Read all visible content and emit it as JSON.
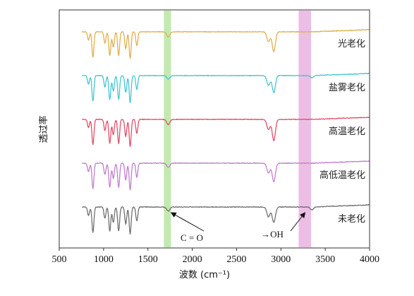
{
  "chart_data": {
    "type": "line",
    "title": "",
    "xlabel": "波数 (cm⁻¹)",
    "ylabel": "透过率",
    "xlim": [
      500,
      4000
    ],
    "x_ticks": [
      500,
      1000,
      1500,
      2000,
      2500,
      3000,
      3500,
      4000
    ],
    "y_ticks_shown": false,
    "grid": false,
    "legend_placement": "labels at right end of each trace",
    "stacking": "vertically offset, top to bottom",
    "series": [
      {
        "name": "光老化",
        "color": "#e0b050",
        "peaks": [
          [
            830,
            0.3
          ],
          [
            880,
            0.9
          ],
          [
            1015,
            0.4
          ],
          [
            1070,
            0.85
          ],
          [
            1110,
            0.55
          ],
          [
            1170,
            0.85
          ],
          [
            1250,
            0.6
          ],
          [
            1300,
            0.95
          ],
          [
            1375,
            0.5
          ],
          [
            1730,
            0.18
          ],
          [
            2860,
            0.35
          ],
          [
            2920,
            0.7
          ]
        ]
      },
      {
        "name": "盐雾老化",
        "color": "#45c6d4",
        "peaks": [
          [
            830,
            0.3
          ],
          [
            880,
            0.9
          ],
          [
            1015,
            0.4
          ],
          [
            1070,
            0.85
          ],
          [
            1110,
            0.55
          ],
          [
            1170,
            0.85
          ],
          [
            1250,
            0.6
          ],
          [
            1300,
            0.95
          ],
          [
            1375,
            0.5
          ],
          [
            1730,
            0.12
          ],
          [
            2860,
            0.35
          ],
          [
            2920,
            0.6
          ],
          [
            3350,
            0.08
          ]
        ]
      },
      {
        "name": "高温老化",
        "color": "#e0506a",
        "peaks": [
          [
            830,
            0.3
          ],
          [
            880,
            0.9
          ],
          [
            1015,
            0.4
          ],
          [
            1070,
            0.85
          ],
          [
            1110,
            0.55
          ],
          [
            1170,
            0.85
          ],
          [
            1250,
            0.6
          ],
          [
            1300,
            0.95
          ],
          [
            1375,
            0.5
          ],
          [
            1730,
            0.18
          ],
          [
            2860,
            0.35
          ],
          [
            2920,
            0.75
          ]
        ]
      },
      {
        "name": "高低温老化",
        "color": "#c080cc",
        "peaks": [
          [
            830,
            0.3
          ],
          [
            880,
            0.9
          ],
          [
            1015,
            0.4
          ],
          [
            1070,
            0.85
          ],
          [
            1110,
            0.55
          ],
          [
            1170,
            0.85
          ],
          [
            1250,
            0.6
          ],
          [
            1300,
            0.95
          ],
          [
            1375,
            0.5
          ],
          [
            1730,
            0.15
          ],
          [
            2860,
            0.35
          ],
          [
            2920,
            0.65
          ]
        ]
      },
      {
        "name": "未老化",
        "color": "#707070",
        "peaks": [
          [
            830,
            0.3
          ],
          [
            880,
            0.9
          ],
          [
            1015,
            0.4
          ],
          [
            1070,
            0.85
          ],
          [
            1110,
            0.55
          ],
          [
            1170,
            0.85
          ],
          [
            1250,
            0.6
          ],
          [
            1300,
            0.95
          ],
          [
            1375,
            0.5
          ],
          [
            1730,
            0.15
          ],
          [
            2860,
            0.35
          ],
          [
            2920,
            0.55
          ],
          [
            3350,
            0.1
          ]
        ]
      }
    ],
    "bands": [
      {
        "from": 1680,
        "to": 1760,
        "color": "#b8e6a0"
      },
      {
        "from": 3200,
        "to": 3340,
        "color": "#e9b3e0"
      }
    ],
    "annotations": [
      {
        "text": "C = O",
        "x": 1730
      },
      {
        "text": "→OH",
        "x": 3280
      }
    ]
  }
}
